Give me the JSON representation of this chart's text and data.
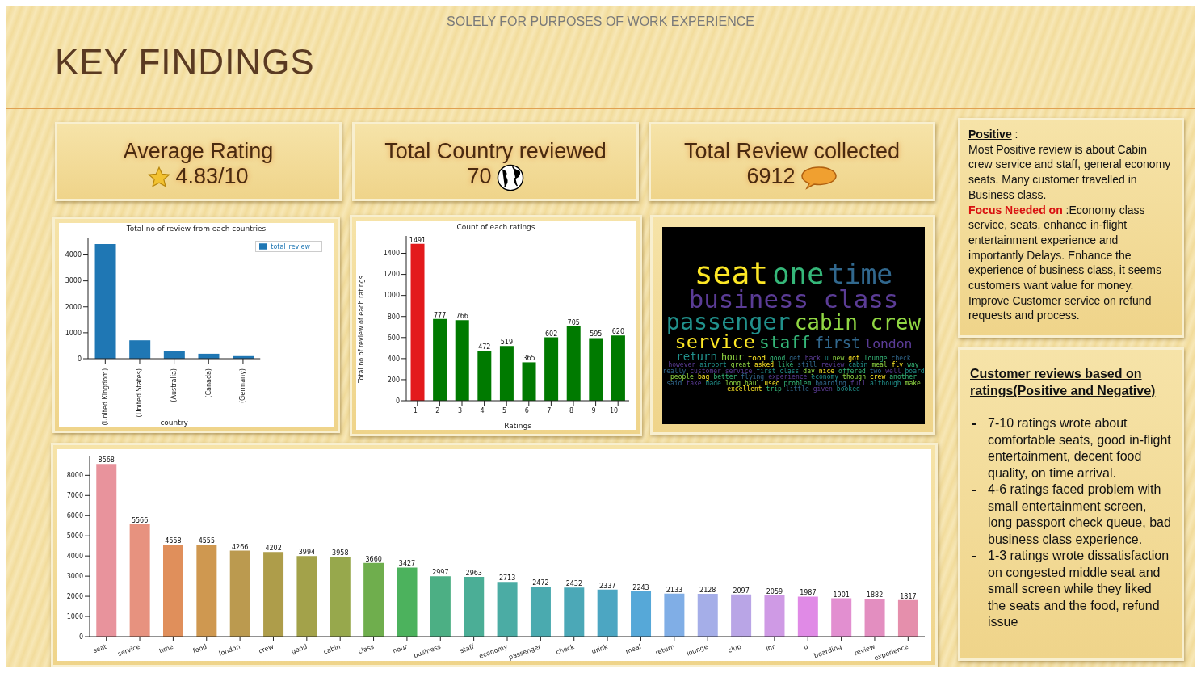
{
  "chart_data": [
    {
      "type": "other",
      "title": "KEY FINDINGS",
      "subtitle": "SOLELY FOR PURPOSES OF WORK EXPERIENCE",
      "annotations": [
        "Average Rating",
        "4.83/10",
        "Total Country reviewed",
        "70",
        "Total Review collected",
        "6912"
      ]
    },
    {
      "type": "bar",
      "title": "Total no of review from each countries",
      "xlabel": "country",
      "categories": [
        "(United Kingdom)",
        "(United States)",
        "(Australia)",
        "(Canada)",
        "(Germany)"
      ],
      "series": [
        {
          "name": "total_review",
          "color": "#1f77b4",
          "values": [
            4420,
            710,
            280,
            190,
            100
          ]
        }
      ],
      "ylim": [
        0,
        4670
      ],
      "yticks": [
        0,
        1000,
        2000,
        3000,
        4000
      ],
      "legend": "top right",
      "grid": false
    },
    {
      "type": "bar",
      "title": "Count of each ratings",
      "xlabel": "Ratings",
      "ylabel": "Total no of review of each ratings",
      "categories": [
        "1",
        "2",
        "3",
        "4",
        "5",
        "6",
        "7",
        "8",
        "9",
        "10"
      ],
      "values": [
        1491,
        777,
        766,
        472,
        519,
        365,
        602,
        705,
        595,
        620
      ],
      "colors": [
        "#e31a1c",
        "#007a00",
        "#007a00",
        "#007a00",
        "#007a00",
        "#007a00",
        "#007a00",
        "#007a00",
        "#007a00",
        "#007a00"
      ],
      "ylim": [
        0,
        1565
      ],
      "yticks": [
        0,
        200,
        400,
        600,
        800,
        1000,
        1200,
        1400
      ],
      "data_labels": true,
      "grid": false
    },
    {
      "type": "other",
      "colors": [
        "#fde725",
        "#35b779",
        "#31688e",
        "#5b3c96",
        "#21918c",
        "#90d743"
      ],
      "annotations": [
        "seat",
        "one",
        "time",
        "business class",
        "passenger",
        "cabin crew",
        "service",
        "staff",
        "first",
        "london",
        "return",
        "hour",
        "food",
        "good",
        "get",
        "back",
        "u",
        "new",
        "got",
        "lounge",
        "check",
        "however",
        "airport",
        "great",
        "asked",
        "like",
        "still",
        "review",
        "cabin",
        "meal",
        "fly",
        "way",
        "really",
        "customer service",
        "first class",
        "day",
        "nice",
        "offered",
        "two",
        "well",
        "board",
        "people",
        "bag",
        "better",
        "flying",
        "experience",
        "economy",
        "though",
        "crew",
        "another",
        "said",
        "take",
        "made",
        "long haul",
        "used",
        "problem",
        "boarding",
        "full",
        "although",
        "make",
        "excellent",
        "trip",
        "little",
        "given",
        "booked"
      ]
    },
    {
      "type": "bar",
      "categories": [
        "seat",
        "service",
        "time",
        "food",
        "london",
        "crew",
        "good",
        "cabin",
        "class",
        "hour",
        "business",
        "staff",
        "economy",
        "passenger",
        "check",
        "drink",
        "meal",
        "return",
        "lounge",
        "club",
        "lhr",
        "u",
        "boarding",
        "review",
        "experience"
      ],
      "values": [
        8568,
        5566,
        4558,
        4555,
        4266,
        4202,
        3994,
        3958,
        3660,
        3427,
        2997,
        2963,
        2713,
        2472,
        2432,
        2337,
        2243,
        2133,
        2128,
        2097,
        2059,
        1987,
        1901,
        1882,
        1817
      ],
      "colors": [
        "#e8939c",
        "#e7927f",
        "#e08f5b",
        "#cf9850",
        "#bb9a4f",
        "#ae9d4a",
        "#a3a24a",
        "#97a84c",
        "#6fae4d",
        "#4cb25d",
        "#4caf84",
        "#4bae96",
        "#4baca4",
        "#4aaaaf",
        "#4ba8b7",
        "#4ca6c2",
        "#56a8d8",
        "#80aee6",
        "#a5aee8",
        "#b9a5e6",
        "#cf9ae5",
        "#e08ae6",
        "#e28fd0",
        "#e38ec0",
        "#e58fac"
      ],
      "ylim": [
        0,
        8975
      ],
      "yticks": [
        0,
        1000,
        2000,
        3000,
        4000,
        5000,
        6000,
        7000,
        8000
      ],
      "data_labels": true,
      "grid": false
    },
    {
      "type": "other",
      "annotations": [
        "Positive",
        ":",
        "Most Positive  review is about Cabin crew service and staff, general economy seats. Many customer travelled in Business class.",
        "Focus Needed on",
        ":Economy class service, seats, enhance in-flight entertainment experience and importantly Delays. Enhance the experience of business class, it seems customers want value for money. Improve Customer service on refund requests and process.",
        "Customer reviews based on ratings(Positive and Negative)",
        "7-10 ratings wrote about comfortable seats, good in-flight entertainment, decent food quality, on time arrival.",
        "4-6 ratings faced problem with small entertainment screen, long passport check queue, bad business class experience.",
        "1-3 ratings wrote dissatisfaction on congested middle seat and small screen while they liked the seats and the food, refund issue"
      ]
    }
  ]
}
